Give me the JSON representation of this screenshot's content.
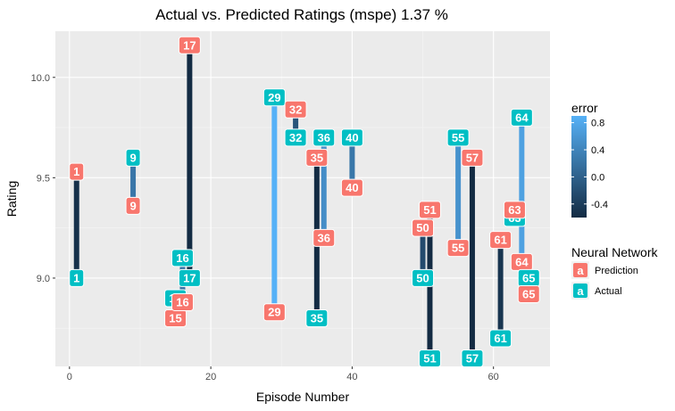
{
  "chart_data": {
    "type": "scatter",
    "title": "Actual vs. Predicted Ratings (mspe) 1.37 %",
    "xlabel": "Episode Number",
    "ylabel": "Rating",
    "xlim": [
      -2,
      68
    ],
    "ylim": [
      8.56,
      10.23
    ],
    "x_ticks": [
      0,
      20,
      40,
      60
    ],
    "y_ticks": [
      9.0,
      9.5,
      10.0
    ],
    "x_tick_labels": [
      "0",
      "20",
      "40",
      "60"
    ],
    "y_tick_labels": [
      "9.0",
      "9.5",
      "10.0"
    ],
    "grid": true,
    "legend_position": "right",
    "color_legend": {
      "title": "error",
      "range": [
        -0.6,
        0.9
      ],
      "ticks": [
        0.8,
        0.4,
        0.0,
        -0.4
      ],
      "tick_labels": [
        "0.8",
        "0.4",
        "0.0",
        "-0.4"
      ],
      "low_color": "#132B43",
      "high_color": "#56B1F7"
    },
    "group_legend": {
      "title": "Neural Network",
      "key_glyph": "a",
      "entries": [
        {
          "name": "Prediction",
          "color": "#F8766D"
        },
        {
          "name": "Actual",
          "color": "#00BFC4"
        }
      ]
    },
    "episodes": [
      {
        "episode": 1,
        "predicted": 9.53,
        "actual": 9.0
      },
      {
        "episode": 9,
        "predicted": 9.36,
        "actual": 9.6
      },
      {
        "episode": 15,
        "predicted": 8.8,
        "actual": 8.9
      },
      {
        "episode": 16,
        "predicted": 8.88,
        "actual": 9.1
      },
      {
        "episode": 17,
        "predicted": 10.16,
        "actual": 9.0
      },
      {
        "episode": 29,
        "predicted": 8.83,
        "actual": 9.9
      },
      {
        "episode": 32,
        "predicted": 9.84,
        "actual": 9.7
      },
      {
        "episode": 35,
        "predicted": 9.6,
        "actual": 8.8
      },
      {
        "episode": 36,
        "predicted": 9.2,
        "actual": 9.7
      },
      {
        "episode": 40,
        "predicted": 9.45,
        "actual": 9.7
      },
      {
        "episode": 50,
        "predicted": 9.25,
        "actual": 9.0
      },
      {
        "episode": 51,
        "predicted": 9.34,
        "actual": 8.6
      },
      {
        "episode": 55,
        "predicted": 9.15,
        "actual": 9.7
      },
      {
        "episode": 57,
        "predicted": 9.6,
        "actual": 8.6
      },
      {
        "episode": 61,
        "predicted": 9.19,
        "actual": 8.7
      },
      {
        "episode": 63,
        "predicted": 9.34,
        "actual": 9.3
      },
      {
        "episode": 64,
        "predicted": 9.08,
        "actual": 9.8
      },
      {
        "episode": 65,
        "predicted": 8.92,
        "actual": 9.0
      }
    ]
  }
}
